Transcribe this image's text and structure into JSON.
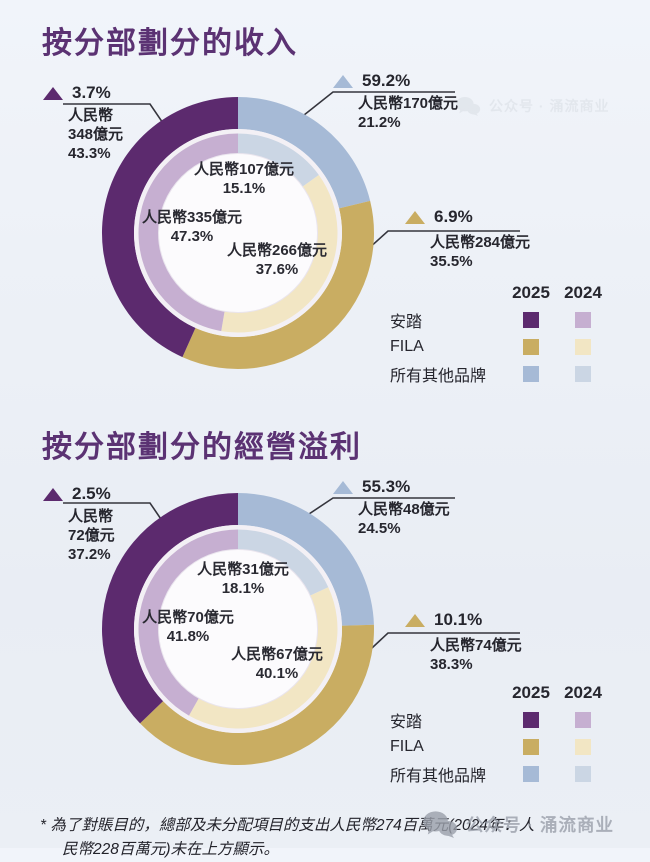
{
  "charts": [
    {
      "title": "按分部劃分的收入",
      "callouts": {
        "anta": {
          "growth": "3.7%",
          "lines": [
            "人民幣",
            "348億元",
            "43.3%"
          ]
        },
        "others": {
          "growth": "59.2%",
          "lines": [
            "人民幣170億元",
            "21.2%"
          ]
        },
        "fila": {
          "growth": "6.9%",
          "lines": [
            "人民幣284億元",
            "35.5%"
          ]
        }
      },
      "inner_labels": {
        "others": {
          "value": "人民幣107億元",
          "pct": "15.1%"
        },
        "anta": {
          "value": "人民幣335億元",
          "pct": "47.3%"
        },
        "fila": {
          "value": "人民幣266億元",
          "pct": "37.6%"
        }
      },
      "legend": {
        "years": [
          "2025",
          "2024"
        ],
        "rows": [
          "安踏",
          "FILA",
          "所有其他品牌"
        ]
      }
    },
    {
      "title": "按分部劃分的經營溢利",
      "callouts": {
        "anta": {
          "growth": "2.5%",
          "lines": [
            "人民幣",
            "72億元",
            "37.2%"
          ]
        },
        "others": {
          "growth": "55.3%",
          "lines": [
            "人民幣48億元",
            "24.5%"
          ]
        },
        "fila": {
          "growth": "10.1%",
          "lines": [
            "人民幣74億元",
            "38.3%"
          ]
        }
      },
      "inner_labels": {
        "others": {
          "value": "人民幣31億元",
          "pct": "18.1%"
        },
        "anta": {
          "value": "人民幣70億元",
          "pct": "41.8%"
        },
        "fila": {
          "value": "人民幣67億元",
          "pct": "40.1%"
        }
      },
      "legend": {
        "years": [
          "2025",
          "2024"
        ],
        "rows": [
          "安踏",
          "FILA",
          "所有其他品牌"
        ]
      }
    }
  ],
  "chart_data": [
    {
      "type": "pie",
      "subtype": "double-ring-donut",
      "title": "按分部劃分的收入",
      "unit": "人民幣億元",
      "categories": [
        "所有其他品牌",
        "FILA",
        "安踏"
      ],
      "start": "top",
      "direction": "clockwise",
      "legend_position": "bottom-right",
      "series": [
        {
          "name": "2025",
          "ring": "outer",
          "share_pct": [
            21.2,
            35.5,
            43.3
          ],
          "amount_rmb_100m": [
            170,
            284,
            348
          ],
          "yoy_change_pct": [
            59.2,
            6.9,
            3.7
          ],
          "color_keys": [
            "others_2025",
            "fila_2025",
            "anta_2025"
          ]
        },
        {
          "name": "2024",
          "ring": "inner",
          "share_pct": [
            15.1,
            37.6,
            47.3
          ],
          "amount_rmb_100m": [
            107,
            266,
            335
          ],
          "color_keys": [
            "others_2024",
            "fila_2024",
            "anta_2024"
          ]
        }
      ]
    },
    {
      "type": "pie",
      "subtype": "double-ring-donut",
      "title": "按分部劃分的經營溢利",
      "unit": "人民幣億元",
      "categories": [
        "所有其他品牌",
        "FILA",
        "安踏"
      ],
      "start": "top",
      "direction": "clockwise",
      "legend_position": "bottom-right",
      "series": [
        {
          "name": "2025",
          "ring": "outer",
          "share_pct": [
            24.5,
            38.3,
            37.2
          ],
          "amount_rmb_100m": [
            48,
            74,
            72
          ],
          "yoy_change_pct": [
            55.3,
            10.1,
            2.5
          ],
          "color_keys": [
            "others_2025",
            "fila_2025",
            "anta_2025"
          ]
        },
        {
          "name": "2024",
          "ring": "inner",
          "share_pct": [
            18.1,
            40.1,
            41.8
          ],
          "amount_rmb_100m": [
            31,
            67,
            70
          ],
          "color_keys": [
            "others_2024",
            "fila_2024",
            "anta_2024"
          ]
        }
      ]
    }
  ],
  "colors": {
    "anta_2025": "#5c2a6e",
    "anta_2024": "#c6afd1",
    "fila_2025": "#c9ad62",
    "fila_2024": "#f2e6c4",
    "others_2025": "#a6bad6",
    "others_2024": "#cbd6e4",
    "title": "#5b3273",
    "gap_ring": "#f3f0f5",
    "center": "#fcfbfd"
  },
  "footnote": "* 為了對賬目的，總部及未分配項目的支出人民幣274百萬元(2024年：人\n民幣228百萬元)未在上方顯示。",
  "watermark": "公众号 · 涌流商业"
}
